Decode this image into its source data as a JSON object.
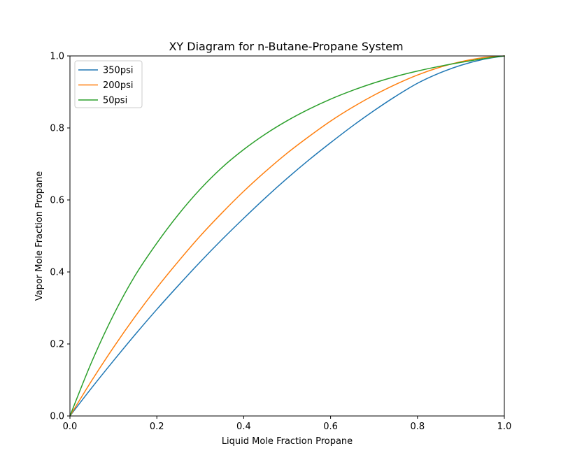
{
  "chart_data": {
    "type": "line",
    "title": "XY Diagram for n-Butane-Propane System",
    "xlabel": "Liquid Mole Fraction Propane",
    "ylabel": "Vapor Mole Fraction Propane",
    "xlim": [
      0.0,
      1.0
    ],
    "ylim": [
      0.0,
      1.0
    ],
    "grid": false,
    "legend_position": "top-left",
    "xticks": [
      "0.0",
      "0.2",
      "0.4",
      "0.6",
      "0.8",
      "1.0"
    ],
    "yticks": [
      "0.0",
      "0.2",
      "0.4",
      "0.6",
      "0.8",
      "1.0"
    ],
    "x": [
      0.0,
      0.05,
      0.1,
      0.15,
      0.2,
      0.25,
      0.3,
      0.35,
      0.4,
      0.45,
      0.5,
      0.55,
      0.6,
      0.65,
      0.7,
      0.75,
      0.8,
      0.85,
      0.9,
      0.95,
      1.0
    ],
    "series": [
      {
        "name": "350psi",
        "color": "#1f77b4",
        "values": [
          0.0,
          0.078,
          0.153,
          0.226,
          0.296,
          0.363,
          0.428,
          0.49,
          0.549,
          0.606,
          0.66,
          0.711,
          0.759,
          0.805,
          0.848,
          0.888,
          0.924,
          0.952,
          0.974,
          0.99,
          1.0
        ]
      },
      {
        "name": "200psi",
        "color": "#ff7f0e",
        "values": [
          0.0,
          0.098,
          0.19,
          0.276,
          0.356,
          0.43,
          0.5,
          0.564,
          0.624,
          0.679,
          0.73,
          0.776,
          0.819,
          0.857,
          0.891,
          0.921,
          0.947,
          0.968,
          0.984,
          0.995,
          1.0
        ]
      },
      {
        "name": "50psi",
        "color": "#2ca02c",
        "values": [
          0.0,
          0.15,
          0.28,
          0.39,
          0.48,
          0.56,
          0.63,
          0.69,
          0.74,
          0.783,
          0.82,
          0.852,
          0.88,
          0.904,
          0.925,
          0.943,
          0.958,
          0.971,
          0.982,
          0.992,
          1.0
        ]
      }
    ]
  }
}
